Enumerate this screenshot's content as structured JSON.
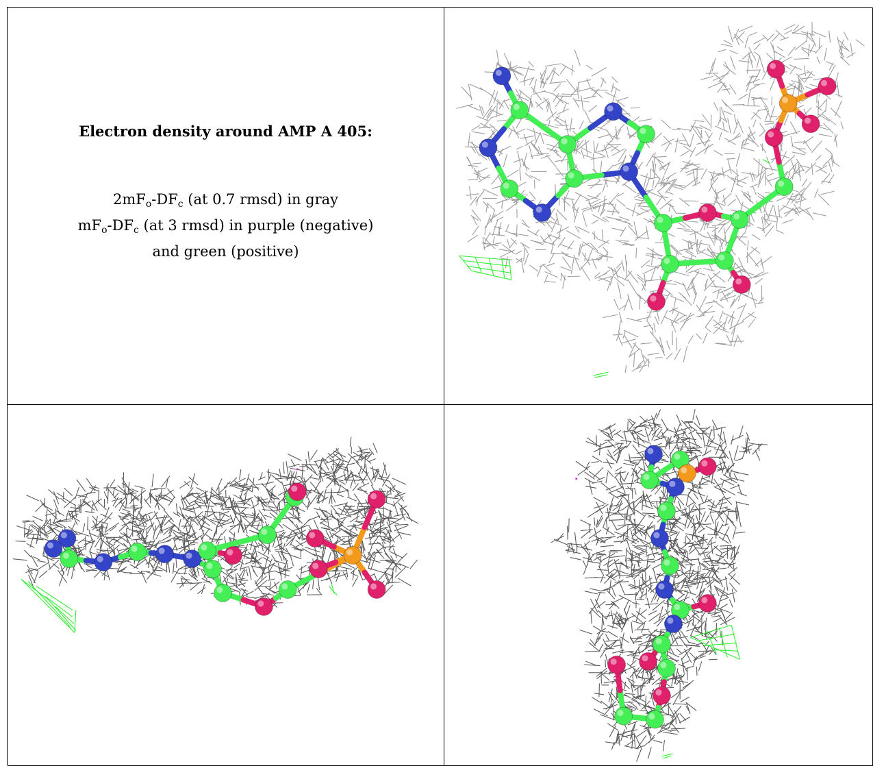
{
  "legend": {
    "title": "Electron density around AMP A 405:",
    "line1": {
      "pre": "2mF",
      "sub1": "o",
      "mid": "-DF",
      "sub2": "c",
      "post": " (at 0.7 rmsd) in gray"
    },
    "line2": {
      "pre": "mF",
      "sub1": "o",
      "mid": "-DF",
      "sub2": "c",
      "post": " (at 3 rmsd) in purple (negative)"
    },
    "line3": "and green (positive)"
  },
  "colors": {
    "carbon": "#44ee55",
    "nitrogen": "#3444c8",
    "oxygen": "#e0206a",
    "phosphorus": "#f39a1c",
    "density_2fofc": "#9d9d9d",
    "density_positive": "#33ee33",
    "density_negative": "#cc33cc"
  },
  "panels": [
    {
      "view": "front-view"
    },
    {
      "view": "side-view"
    },
    {
      "view": "end-view"
    }
  ]
}
